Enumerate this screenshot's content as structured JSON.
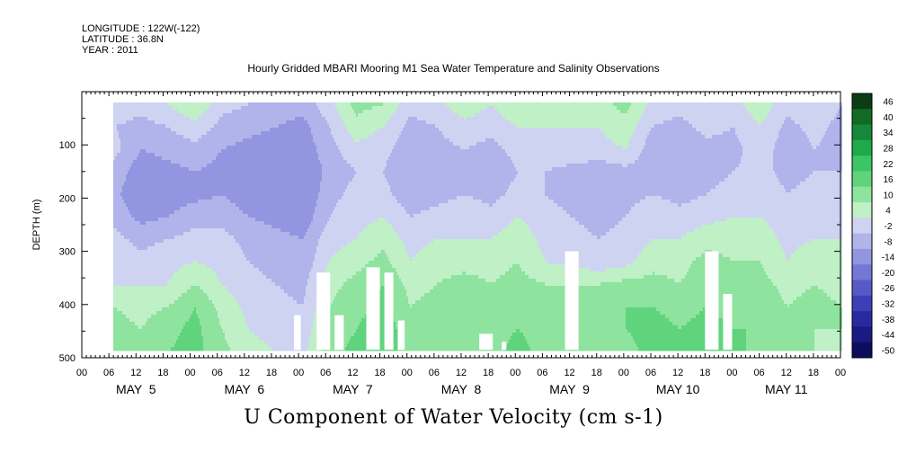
{
  "header": {
    "longitude": "LONGITUDE : 122W(-122)",
    "latitude": "LATITUDE : 36.8N",
    "year": "YEAR : 2011"
  },
  "chart_data": {
    "type": "heatmap",
    "title": "Hourly Gridded MBARI Mooring M1 Sea Water Temperature and Salinity Observations",
    "colorbar_title": "U Component of Water Velocity (cm s-1)",
    "ylabel": "DEPTH (m)",
    "xlabel": "",
    "y_axis": {
      "range": [
        0,
        500
      ],
      "inverted": true,
      "ticks": [
        100,
        200,
        300,
        400,
        500
      ]
    },
    "x_axis": {
      "hour_ticks": [
        "00",
        "06",
        "12",
        "18",
        "00",
        "06",
        "12",
        "18",
        "00",
        "06",
        "12",
        "18",
        "00",
        "06",
        "12",
        "18",
        "00",
        "06",
        "12",
        "18",
        "00",
        "06",
        "12",
        "18",
        "00",
        "06",
        "12",
        "18",
        "00"
      ],
      "day_labels": [
        "MAY  5",
        "MAY  6",
        "MAY  7",
        "MAY  8",
        "MAY  9",
        "MAY 10",
        "MAY 11"
      ]
    },
    "colorbar": {
      "levels": [
        46,
        40,
        34,
        28,
        22,
        16,
        10,
        4,
        -2,
        -8,
        -14,
        -20,
        -26,
        -32,
        -38,
        -44,
        -50
      ],
      "colors": [
        "#0a3d14",
        "#116b24",
        "#16883b",
        "#1faa4a",
        "#3cc565",
        "#5fd47d",
        "#8ee39e",
        "#bff0c6",
        "#cfd3f2",
        "#b0b4ea",
        "#9296e0",
        "#7378d4",
        "#575ac6",
        "#3d3fb6",
        "#2a2aa0",
        "#1a1a84",
        "#0d0d5e"
      ]
    },
    "field": {
      "x_start_hour": 7,
      "x_end_hour": 168,
      "depth_start": 20,
      "depth_end": 485,
      "time_columns": [
        [
          -4,
          -8,
          -6,
          -10,
          -12,
          -10,
          -6,
          -4,
          -2,
          4,
          6,
          8
        ],
        [
          -6,
          -10,
          -14,
          -18,
          -20,
          -16,
          -10,
          -6,
          -2,
          2,
          4,
          6
        ],
        [
          -2,
          -8,
          -12,
          -16,
          -18,
          -14,
          -8,
          -4,
          -2,
          4,
          8,
          10
        ],
        [
          4,
          -4,
          -10,
          -14,
          -16,
          -10,
          -6,
          -2,
          4,
          10,
          12,
          12
        ],
        [
          -6,
          -10,
          -14,
          -16,
          -14,
          -10,
          -6,
          -4,
          -2,
          2,
          4,
          6
        ],
        [
          -8,
          -12,
          -16,
          -18,
          -18,
          -14,
          -10,
          -8,
          -6,
          -4,
          -2,
          0
        ],
        [
          -10,
          -14,
          -18,
          -20,
          -18,
          -16,
          -12,
          -10,
          -8,
          -6,
          -4,
          -2
        ],
        [
          -12,
          -16,
          -18,
          -20,
          -20,
          -18,
          -14,
          -12,
          -10,
          -8,
          -6,
          -4
        ],
        [
          -4,
          -8,
          -10,
          -12,
          -10,
          -8,
          -4,
          -2,
          2,
          4,
          6,
          8
        ],
        [
          6,
          2,
          -4,
          -8,
          -6,
          -4,
          -2,
          2,
          6,
          8,
          10,
          12
        ],
        [
          4,
          -2,
          -6,
          -8,
          -6,
          -2,
          2,
          6,
          10,
          12,
          14,
          12
        ],
        [
          -6,
          -10,
          -12,
          -14,
          -12,
          -8,
          -4,
          -2,
          2,
          4,
          6,
          8
        ],
        [
          -4,
          -8,
          -10,
          -12,
          -10,
          -6,
          -2,
          2,
          4,
          6,
          8,
          10
        ],
        [
          2,
          -4,
          -8,
          -10,
          -8,
          -4,
          -2,
          2,
          6,
          8,
          10,
          10
        ],
        [
          -2,
          -6,
          -10,
          -12,
          -10,
          -6,
          -2,
          2,
          4,
          6,
          8,
          8
        ],
        [
          4,
          -2,
          -6,
          -8,
          -6,
          -2,
          2,
          4,
          6,
          8,
          10,
          12
        ],
        [
          -2,
          -2,
          -4,
          -8,
          -8,
          -6,
          -4,
          -2,
          4,
          8,
          8,
          8
        ],
        [
          0,
          -2,
          -4,
          -10,
          -10,
          -8,
          -6,
          -4,
          4,
          8,
          8,
          8
        ],
        [
          2,
          -2,
          -4,
          -12,
          -12,
          -10,
          -8,
          -6,
          4,
          8,
          8,
          8
        ],
        [
          6,
          2,
          -2,
          -10,
          -10,
          -8,
          -6,
          -4,
          6,
          10,
          10,
          8
        ],
        [
          -4,
          -8,
          -12,
          -10,
          -8,
          -4,
          -2,
          2,
          6,
          10,
          12,
          12
        ],
        [
          -6,
          -10,
          -14,
          -12,
          -10,
          -6,
          -2,
          2,
          4,
          8,
          10,
          12
        ],
        [
          -2,
          -6,
          -10,
          -10,
          -8,
          -4,
          2,
          6,
          8,
          10,
          12,
          10
        ],
        [
          -4,
          -8,
          -10,
          -8,
          -6,
          -2,
          2,
          4,
          6,
          8,
          10,
          12
        ],
        [
          2,
          -2,
          -4,
          -6,
          -4,
          -2,
          2,
          4,
          6,
          8,
          10,
          8
        ],
        [
          -6,
          -10,
          -12,
          -10,
          -8,
          -6,
          -4,
          -2,
          2,
          4,
          6,
          6
        ],
        [
          -2,
          -6,
          -8,
          -8,
          -6,
          -4,
          -2,
          2,
          4,
          6,
          4,
          4
        ],
        [
          -8,
          -10,
          -10,
          -8,
          -6,
          -4,
          -2,
          2,
          2,
          4,
          4,
          2
        ]
      ]
    }
  }
}
